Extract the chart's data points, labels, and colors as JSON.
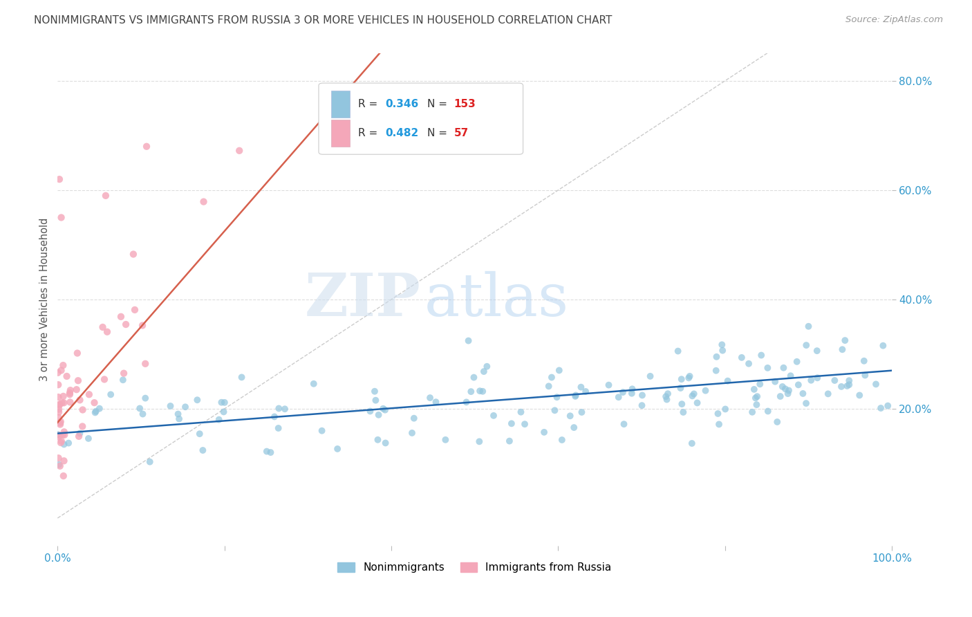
{
  "title": "NONIMMIGRANTS VS IMMIGRANTS FROM RUSSIA 3 OR MORE VEHICLES IN HOUSEHOLD CORRELATION CHART",
  "source": "Source: ZipAtlas.com",
  "ylabel": "3 or more Vehicles in Household",
  "watermark_zip": "ZIP",
  "watermark_atlas": "atlas",
  "legend_nonimm_r": 0.346,
  "legend_nonimm_n": 153,
  "legend_imm_r": 0.482,
  "legend_imm_n": 57,
  "nonimm_color": "#92c5de",
  "imm_color": "#f4a7b9",
  "nonimm_line_color": "#2166ac",
  "imm_line_color": "#d6604d",
  "diagonal_color": "#cccccc",
  "background_color": "#ffffff",
  "grid_color": "#dddddd",
  "title_color": "#444444",
  "source_color": "#999999",
  "axis_label_color": "#3399cc",
  "legend_r_color": "#2299dd",
  "legend_n_color": "#dd2222",
  "xlim": [
    0.0,
    1.0
  ],
  "ylim": [
    -0.05,
    0.85
  ],
  "ytick_vals": [
    0.2,
    0.4,
    0.6,
    0.8
  ],
  "ytick_labels": [
    "20.0%",
    "40.0%",
    "60.0%",
    "80.0%"
  ],
  "xtick_vals": [
    0.0,
    0.2,
    0.4,
    0.6,
    0.8,
    1.0
  ],
  "xtick_labels_show": [
    "0.0%",
    "",
    "",
    "",
    "",
    "100.0%"
  ]
}
